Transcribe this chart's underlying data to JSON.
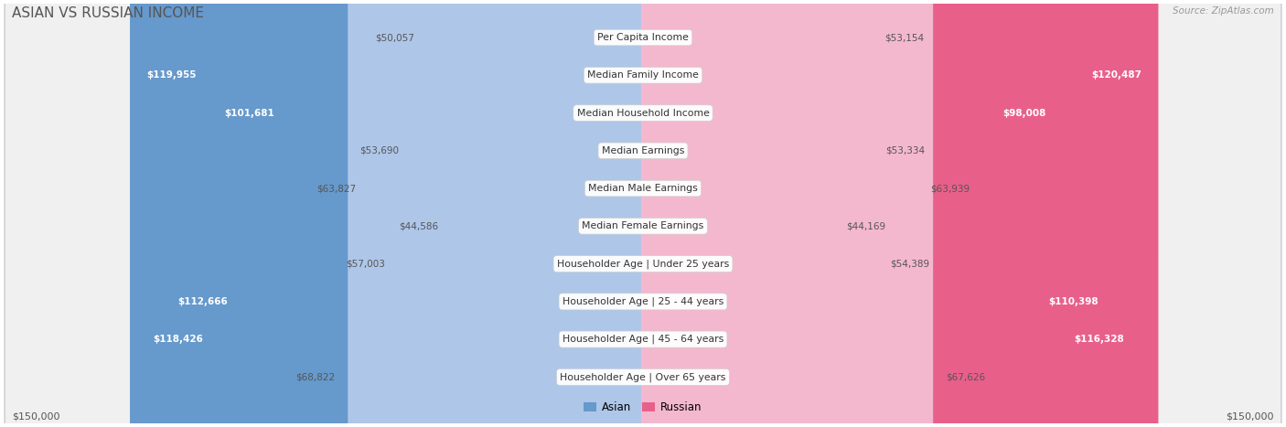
{
  "title": "ASIAN VS RUSSIAN INCOME",
  "source": "Source: ZipAtlas.com",
  "categories": [
    "Per Capita Income",
    "Median Family Income",
    "Median Household Income",
    "Median Earnings",
    "Median Male Earnings",
    "Median Female Earnings",
    "Householder Age | Under 25 years",
    "Householder Age | 25 - 44 years",
    "Householder Age | 45 - 64 years",
    "Householder Age | Over 65 years"
  ],
  "asian_values": [
    50057,
    119955,
    101681,
    53690,
    63827,
    44586,
    57003,
    112666,
    118426,
    68822
  ],
  "russian_values": [
    53154,
    120487,
    98008,
    53334,
    63939,
    44169,
    54389,
    110398,
    116328,
    67626
  ],
  "asian_labels": [
    "$50,057",
    "$119,955",
    "$101,681",
    "$53,690",
    "$63,827",
    "$44,586",
    "$57,003",
    "$112,666",
    "$118,426",
    "$68,822"
  ],
  "russian_labels": [
    "$53,154",
    "$120,487",
    "$98,008",
    "$53,334",
    "$63,939",
    "$44,169",
    "$54,389",
    "$110,398",
    "$116,328",
    "$67,626"
  ],
  "asian_color_light": "#aec6e8",
  "asian_color_dark": "#6699cc",
  "russian_color_light": "#f4b8ce",
  "russian_color_dark": "#e8608a",
  "max_value": 150000,
  "xlabel_left": "$150,000",
  "xlabel_right": "$150,000",
  "legend_asian": "Asian",
  "legend_russian": "Russian",
  "bg_color": "#ffffff",
  "row_bg_color": "#f0f0f0",
  "row_border_color": "#cccccc",
  "label_threshold": 80000,
  "title_color": "#555555",
  "source_color": "#999999",
  "axis_label_color": "#555555",
  "outside_label_color": "#555555",
  "inside_label_color": "#ffffff"
}
